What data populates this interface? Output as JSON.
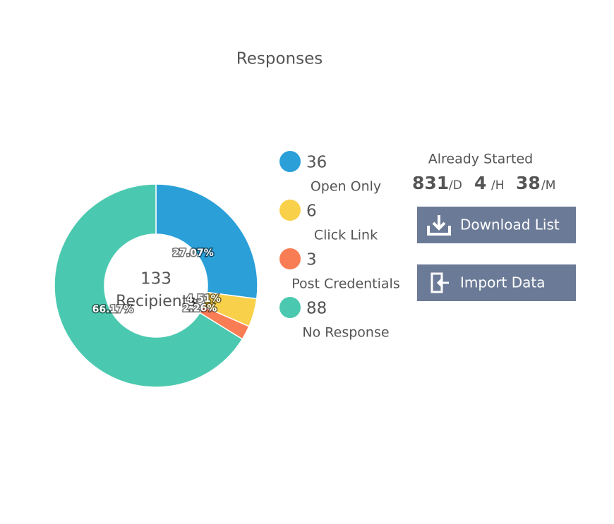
{
  "chart_data": {
    "type": "donut",
    "title": "Responses",
    "categories": [
      "Open Only",
      "Click Link",
      "Post Credentials",
      "No Response"
    ],
    "values": [
      36,
      6,
      3,
      88
    ],
    "colors": [
      "#2a9fd8",
      "#f9d04a",
      "#f97d54",
      "#4bc9b0"
    ],
    "percent_labels": [
      "27.07%",
      "4.51%",
      "2.26%",
      "66.17%"
    ],
    "center_value": 133,
    "center_label": "Recipients"
  },
  "status": {
    "title": "Already Started",
    "days": 831,
    "days_unit": "/D",
    "hours": 4,
    "hours_unit": "/H",
    "minutes": 38,
    "minutes_unit": "/M"
  },
  "buttons": [
    "Download List",
    "Import Data"
  ]
}
